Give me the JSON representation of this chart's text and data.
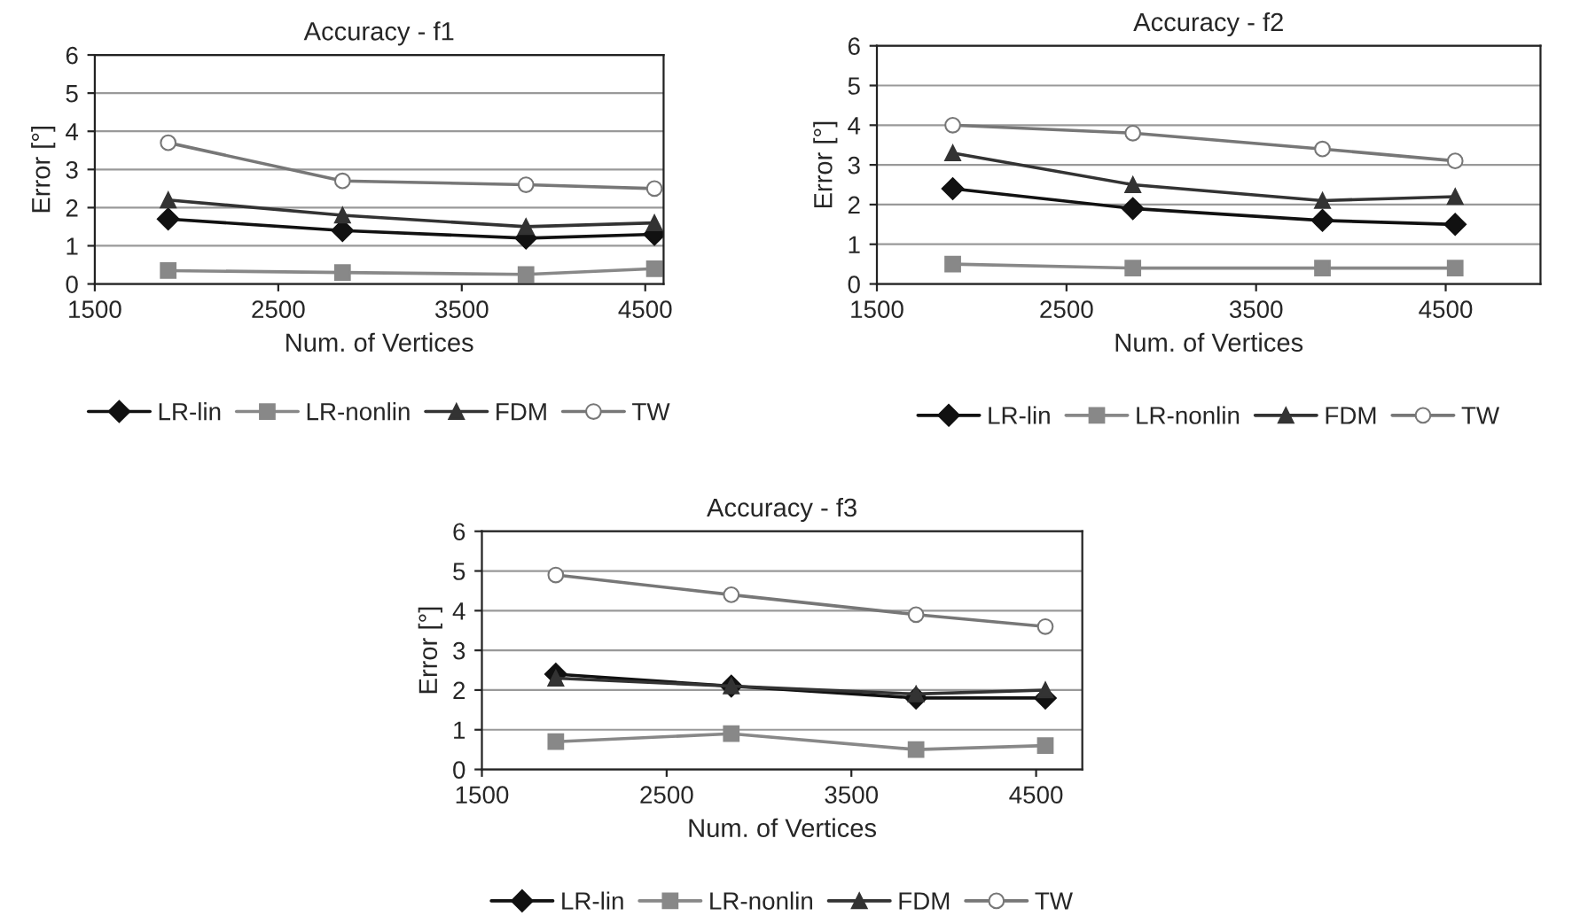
{
  "chart_data": [
    {
      "type": "line",
      "title": "Accuracy - f1",
      "xlabel": "Num. of Vertices",
      "ylabel": "Error [°]",
      "x": [
        1900,
        2850,
        3850,
        4550
      ],
      "xlim": [
        1500,
        4600
      ],
      "xticks": [
        1500,
        2500,
        3500,
        4500
      ],
      "ylim": [
        0,
        6
      ],
      "yticks": [
        0,
        1,
        2,
        3,
        4,
        5,
        6
      ],
      "grid": "y",
      "legend": "bottom",
      "series": [
        {
          "name": "LR-lin",
          "color": "#111111",
          "marker": "diamond",
          "values": [
            1.7,
            1.4,
            1.2,
            1.3
          ]
        },
        {
          "name": "LR-nonlin",
          "color": "#888888",
          "marker": "square",
          "values": [
            0.35,
            0.3,
            0.25,
            0.4
          ]
        },
        {
          "name": "FDM",
          "color": "#333333",
          "marker": "triangle",
          "values": [
            2.2,
            1.8,
            1.5,
            1.6
          ]
        },
        {
          "name": "TW",
          "color": "#777777",
          "marker": "circle",
          "values": [
            3.7,
            2.7,
            2.6,
            2.5
          ]
        }
      ]
    },
    {
      "type": "line",
      "title": "Accuracy - f2",
      "xlabel": "Num. of Vertices",
      "ylabel": "Error [°]",
      "x": [
        1900,
        2850,
        3850,
        4550
      ],
      "xlim": [
        1500,
        5000
      ],
      "xticks": [
        1500,
        2500,
        3500,
        4500
      ],
      "ylim": [
        0,
        6
      ],
      "yticks": [
        0,
        1,
        2,
        3,
        4,
        5,
        6
      ],
      "grid": "y",
      "legend": "bottom",
      "series": [
        {
          "name": "LR-lin",
          "color": "#111111",
          "marker": "diamond",
          "values": [
            2.4,
            1.9,
            1.6,
            1.5
          ]
        },
        {
          "name": "LR-nonlin",
          "color": "#888888",
          "marker": "square",
          "values": [
            0.5,
            0.4,
            0.4,
            0.4
          ]
        },
        {
          "name": "FDM",
          "color": "#333333",
          "marker": "triangle",
          "values": [
            3.3,
            2.5,
            2.1,
            2.2
          ]
        },
        {
          "name": "TW",
          "color": "#777777",
          "marker": "circle",
          "values": [
            4.0,
            3.8,
            3.4,
            3.1
          ]
        }
      ]
    },
    {
      "type": "line",
      "title": "Accuracy - f3",
      "xlabel": "Num. of Vertices",
      "ylabel": "Error [°]",
      "x": [
        1900,
        2850,
        3850,
        4550
      ],
      "xlim": [
        1500,
        4750
      ],
      "xticks": [
        1500,
        2500,
        3500,
        4500
      ],
      "ylim": [
        0,
        6
      ],
      "yticks": [
        0,
        1,
        2,
        3,
        4,
        5,
        6
      ],
      "grid": "y",
      "legend": "bottom",
      "series": [
        {
          "name": "LR-lin",
          "color": "#111111",
          "marker": "diamond",
          "values": [
            2.4,
            2.1,
            1.8,
            1.8
          ]
        },
        {
          "name": "LR-nonlin",
          "color": "#888888",
          "marker": "square",
          "values": [
            0.7,
            0.9,
            0.5,
            0.6
          ]
        },
        {
          "name": "FDM",
          "color": "#333333",
          "marker": "triangle",
          "values": [
            2.3,
            2.1,
            1.9,
            2.0
          ]
        },
        {
          "name": "TW",
          "color": "#777777",
          "marker": "circle",
          "values": [
            4.9,
            4.4,
            3.9,
            3.6
          ]
        }
      ]
    }
  ]
}
